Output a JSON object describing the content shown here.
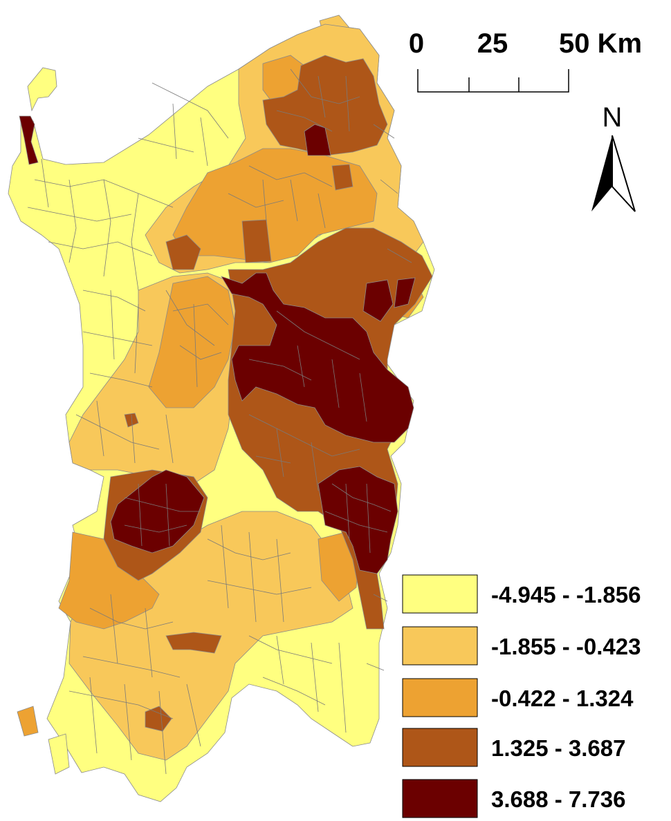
{
  "scale_bar": {
    "labels": [
      "0",
      "25",
      "50 Km"
    ]
  },
  "north_arrow": {
    "letter": "N",
    "icon": "north-arrow-icon"
  },
  "legend": {
    "classes": [
      {
        "label": "-4.945 - -1.856",
        "color": "#ffff80"
      },
      {
        "label": "-1.855 - -0.423",
        "color": "#f8c85a"
      },
      {
        "label": "-0.422 - 1.324",
        "color": "#eda232"
      },
      {
        "label": "1.325 - 3.687",
        "color": "#ae5618"
      },
      {
        "label": "3.688 - 7.736",
        "color": "#6b0000"
      }
    ]
  },
  "colors": {
    "background": "#ffffff",
    "boundary": "#8a8a8a"
  }
}
